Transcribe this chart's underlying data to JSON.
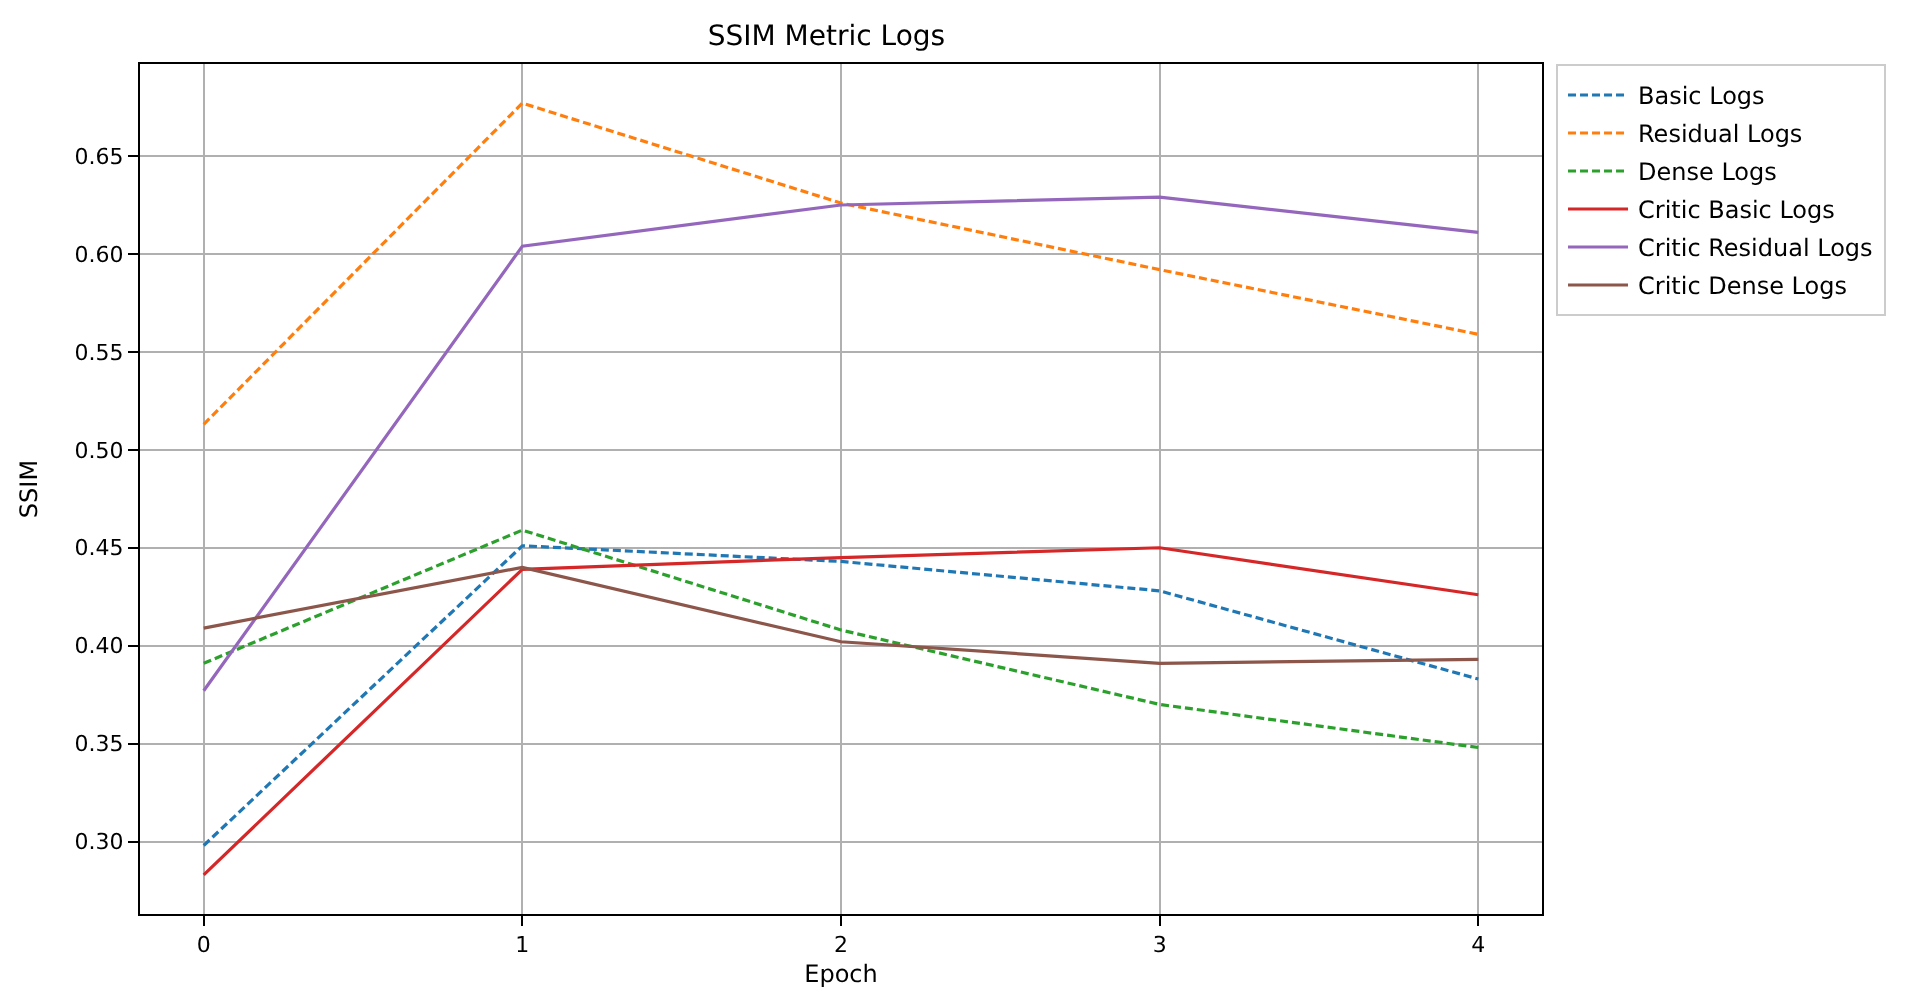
{
  "chart_data": {
    "type": "line",
    "title": "SSIM Metric Logs",
    "xlabel": "Epoch",
    "ylabel": "SSIM",
    "x": [
      0,
      1,
      2,
      3,
      4
    ],
    "xlim": [
      -0.2,
      4.2
    ],
    "xticks": [
      0,
      1,
      2,
      3,
      4
    ],
    "ylim": [
      0.263,
      0.697
    ],
    "yticks": [
      {
        "value": 0.3,
        "label": "0.30"
      },
      0.35,
      {
        "value": 0.4,
        "label": "0.40"
      },
      0.45,
      {
        "value": 0.5,
        "label": "0.50"
      },
      0.55,
      {
        "value": 0.6,
        "label": "0.60"
      },
      0.65
    ],
    "grid": true,
    "legend": "top right",
    "marker": "none",
    "series": [
      {
        "name": "Basic Logs",
        "color": "#1f77b4",
        "line_style": "dashed",
        "values": [
          0.298,
          0.451,
          0.443,
          0.428,
          0.383
        ]
      },
      {
        "name": "Residual Logs",
        "color": "#ff7f0e",
        "line_style": "dashed",
        "values": [
          0.513,
          0.677,
          0.626,
          0.592,
          0.559
        ]
      },
      {
        "name": "Dense Logs",
        "color": "#2ca02c",
        "line_style": "dashed",
        "values": [
          0.391,
          0.459,
          0.408,
          0.37,
          0.348
        ]
      },
      {
        "name": "Critic Basic Logs",
        "color": "#d62728",
        "line_style": "solid",
        "values": [
          0.283,
          0.439,
          0.445,
          0.45,
          0.426
        ]
      },
      {
        "name": "Critic Residual Logs",
        "color": "#9467bd",
        "line_style": "solid",
        "values": [
          0.377,
          0.604,
          0.625,
          0.629,
          0.611
        ]
      },
      {
        "name": "Critic Dense Logs",
        "color": "#8c564b",
        "line_style": "solid",
        "values": [
          0.409,
          0.44,
          0.402,
          0.391,
          0.393
        ]
      }
    ]
  }
}
